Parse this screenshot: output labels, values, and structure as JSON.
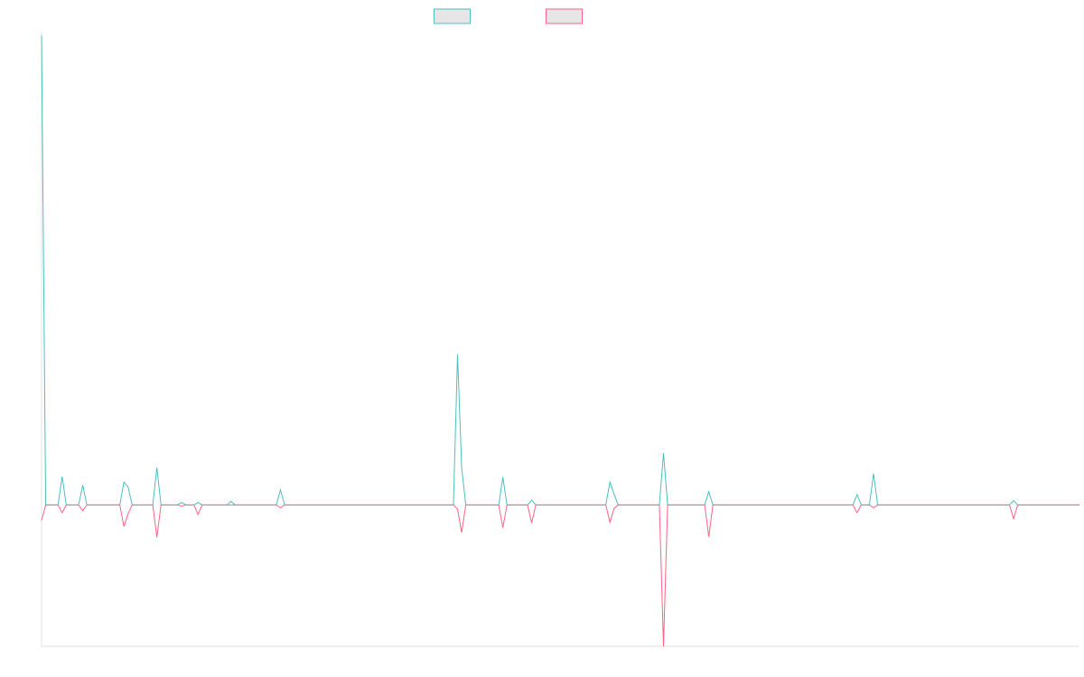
{
  "chart_data": {
    "type": "line",
    "title": "",
    "xlabel": "",
    "ylabel": "",
    "grid": false,
    "legend": {
      "position": "top-center",
      "entries": [
        {
          "label": "",
          "color": "#4bc0c0"
        },
        {
          "label": "",
          "color": "#ff6384"
        }
      ]
    },
    "ylim": [
      -23.5,
      78.5
    ],
    "xlim": [
      0,
      252
    ],
    "colors": {
      "series_1": "#4bc0c0",
      "series_2": "#ff6384",
      "axis": "#e0e0e0",
      "legend_fill": "#e6e6e6"
    },
    "series": [
      {
        "color": "#4bc0c0",
        "points": [
          [
            0,
            78
          ],
          [
            1,
            0
          ],
          [
            4,
            0
          ],
          [
            5,
            4.7
          ],
          [
            6,
            0
          ],
          [
            9,
            0
          ],
          [
            10,
            3.3
          ],
          [
            11,
            0
          ],
          [
            19,
            0
          ],
          [
            20,
            3.8
          ],
          [
            21,
            3
          ],
          [
            22,
            0
          ],
          [
            27,
            0
          ],
          [
            28,
            6.2
          ],
          [
            29,
            0
          ],
          [
            33,
            0
          ],
          [
            34,
            0.4
          ],
          [
            35,
            0
          ],
          [
            37,
            0
          ],
          [
            38,
            0.4
          ],
          [
            39,
            0
          ],
          [
            45,
            0
          ],
          [
            46,
            0.6
          ],
          [
            47,
            0
          ],
          [
            57,
            0
          ],
          [
            58,
            2.5
          ],
          [
            59,
            0
          ],
          [
            100,
            0
          ],
          [
            101,
            25
          ],
          [
            102,
            6.2
          ],
          [
            103,
            0
          ],
          [
            111,
            0
          ],
          [
            112,
            4.6
          ],
          [
            113,
            0
          ],
          [
            118,
            0
          ],
          [
            119,
            0.8
          ],
          [
            120,
            0
          ],
          [
            137,
            0
          ],
          [
            138,
            3.8
          ],
          [
            139,
            1.8
          ],
          [
            140,
            0
          ],
          [
            150,
            0
          ],
          [
            151,
            8.6
          ],
          [
            152,
            0
          ],
          [
            161,
            0
          ],
          [
            162,
            2.2
          ],
          [
            163,
            0
          ],
          [
            197,
            0
          ],
          [
            198,
            1.7
          ],
          [
            199,
            0
          ],
          [
            201,
            0
          ],
          [
            202,
            5.2
          ],
          [
            203,
            0
          ],
          [
            235,
            0
          ],
          [
            236,
            0.7
          ],
          [
            237,
            0
          ],
          [
            252,
            0
          ]
        ]
      },
      {
        "color": "#ff6384",
        "points": [
          [
            0,
            -2.6
          ],
          [
            1,
            0
          ],
          [
            4,
            0
          ],
          [
            5,
            -1.3
          ],
          [
            6,
            0
          ],
          [
            9,
            0
          ],
          [
            10,
            -1
          ],
          [
            11,
            0
          ],
          [
            19,
            0
          ],
          [
            20,
            -3.6
          ],
          [
            21,
            -1.5
          ],
          [
            22,
            0
          ],
          [
            27,
            0
          ],
          [
            28,
            -5.4
          ],
          [
            29,
            0
          ],
          [
            33,
            0
          ],
          [
            34,
            -0.2
          ],
          [
            35,
            0
          ],
          [
            37,
            0
          ],
          [
            38,
            -1.6
          ],
          [
            39,
            0
          ],
          [
            57,
            0
          ],
          [
            58,
            -0.5
          ],
          [
            59,
            0
          ],
          [
            100,
            0
          ],
          [
            101,
            -0.7
          ],
          [
            102,
            -4.6
          ],
          [
            103,
            0
          ],
          [
            111,
            0
          ],
          [
            112,
            -3.8
          ],
          [
            113,
            0
          ],
          [
            118,
            0
          ],
          [
            119,
            -3
          ],
          [
            120,
            0
          ],
          [
            137,
            0
          ],
          [
            138,
            -2.9
          ],
          [
            139,
            -0.6
          ],
          [
            140,
            0
          ],
          [
            150,
            0
          ],
          [
            151,
            -23.5
          ],
          [
            152,
            0
          ],
          [
            161,
            0
          ],
          [
            162,
            -5.3
          ],
          [
            163,
            0
          ],
          [
            197,
            0
          ],
          [
            198,
            -1.3
          ],
          [
            199,
            0
          ],
          [
            201,
            0
          ],
          [
            202,
            -0.5
          ],
          [
            203,
            0
          ],
          [
            235,
            0
          ],
          [
            236,
            -2.3
          ],
          [
            237,
            0
          ],
          [
            252,
            0
          ]
        ]
      }
    ]
  }
}
